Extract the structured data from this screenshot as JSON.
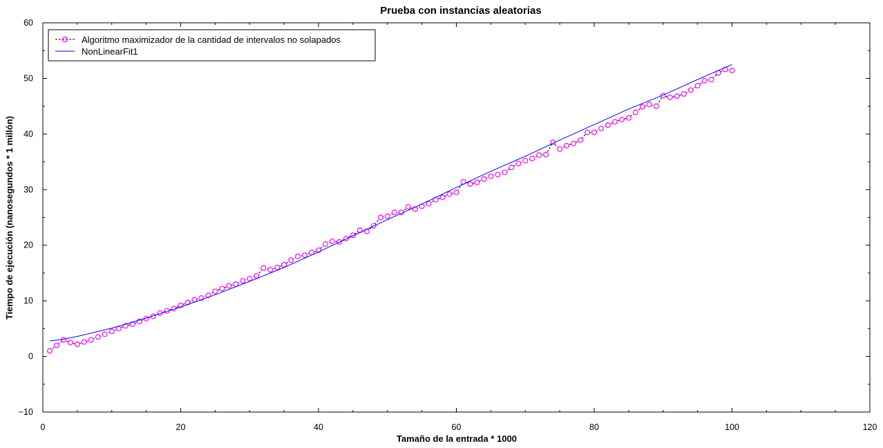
{
  "chart_data": {
    "type": "line",
    "title": "Prueba con instancias aleatorias",
    "xlabel": "Tamaño de la entrada * 1000",
    "ylabel": "Tiempo de ejecución (nanosegundos * 1 millón)",
    "xlim": [
      0,
      120
    ],
    "ylim": [
      -10,
      60
    ],
    "xticks": [
      0,
      20,
      40,
      60,
      80,
      100,
      120
    ],
    "yticks": [
      -10,
      0,
      10,
      20,
      30,
      40,
      50,
      60
    ],
    "xtick_labels": [
      "0",
      "20",
      "40",
      "60",
      "80",
      "100",
      "120"
    ],
    "ytick_labels": [
      "−10",
      "0",
      "10",
      "20",
      "30",
      "40",
      "50",
      "60"
    ],
    "grid": false,
    "legend_position": "top-left",
    "series": [
      {
        "name": "Algoritmo maximizador de la cantidad de intervalos no solapados",
        "style": "dashed-markers",
        "color": "#000000",
        "marker_color": "#ff00ff",
        "x": [
          1,
          2,
          3,
          4,
          5,
          6,
          7,
          8,
          9,
          10,
          11,
          12,
          13,
          14,
          15,
          16,
          17,
          18,
          19,
          20,
          21,
          22,
          23,
          24,
          25,
          26,
          27,
          28,
          29,
          30,
          31,
          32,
          33,
          34,
          35,
          36,
          37,
          38,
          39,
          40,
          41,
          42,
          43,
          44,
          45,
          46,
          47,
          48,
          49,
          50,
          51,
          52,
          53,
          54,
          55,
          56,
          57,
          58,
          59,
          60,
          61,
          62,
          63,
          64,
          65,
          66,
          67,
          68,
          69,
          70,
          71,
          72,
          73,
          74,
          75,
          76,
          77,
          78,
          79,
          80,
          81,
          82,
          83,
          84,
          85,
          86,
          87,
          88,
          89,
          90,
          91,
          92,
          93,
          94,
          95,
          96,
          97,
          98,
          99,
          100
        ],
        "values": [
          1.0,
          2.0,
          3.0,
          2.5,
          2.2,
          2.6,
          3.0,
          3.5,
          4.0,
          4.5,
          5.0,
          5.5,
          5.8,
          6.3,
          6.8,
          7.2,
          7.8,
          8.2,
          8.6,
          9.2,
          9.7,
          10.2,
          10.5,
          11.0,
          11.7,
          12.2,
          12.7,
          13.0,
          13.6,
          14.0,
          14.5,
          15.9,
          15.6,
          16.0,
          16.5,
          17.3,
          18.0,
          18.2,
          18.7,
          19.1,
          20.2,
          20.7,
          20.6,
          21.2,
          21.8,
          22.7,
          22.5,
          23.5,
          25.0,
          25.2,
          25.9,
          25.9,
          26.9,
          26.5,
          27.0,
          27.5,
          28.2,
          28.6,
          29.2,
          29.5,
          31.4,
          31.0,
          31.3,
          31.9,
          32.4,
          32.7,
          33.1,
          34.0,
          34.7,
          35.2,
          35.6,
          36.2,
          36.3,
          38.5,
          37.3,
          37.9,
          38.3,
          38.9,
          40.3,
          40.3,
          41.0,
          41.6,
          42.2,
          42.6,
          42.9,
          43.9,
          44.9,
          45.3,
          45.0,
          46.9,
          46.6,
          46.8,
          47.2,
          47.9,
          48.7,
          49.6,
          49.8,
          51.0,
          51.6,
          51.4
        ]
      },
      {
        "name": "NonLinearFit1",
        "style": "solid",
        "color": "#0000ff",
        "x": [
          1,
          3,
          5,
          8,
          10,
          15,
          20,
          25,
          30,
          35,
          40,
          45,
          50,
          55,
          60,
          65,
          70,
          75,
          80,
          85,
          90,
          95,
          100
        ],
        "values": [
          2.8,
          3.1,
          3.6,
          4.5,
          5.1,
          6.9,
          8.9,
          11.1,
          13.5,
          16.0,
          18.8,
          21.7,
          24.6,
          27.4,
          30.4,
          33.3,
          36.0,
          38.9,
          41.7,
          44.5,
          47.0,
          49.8,
          52.5
        ]
      }
    ]
  }
}
